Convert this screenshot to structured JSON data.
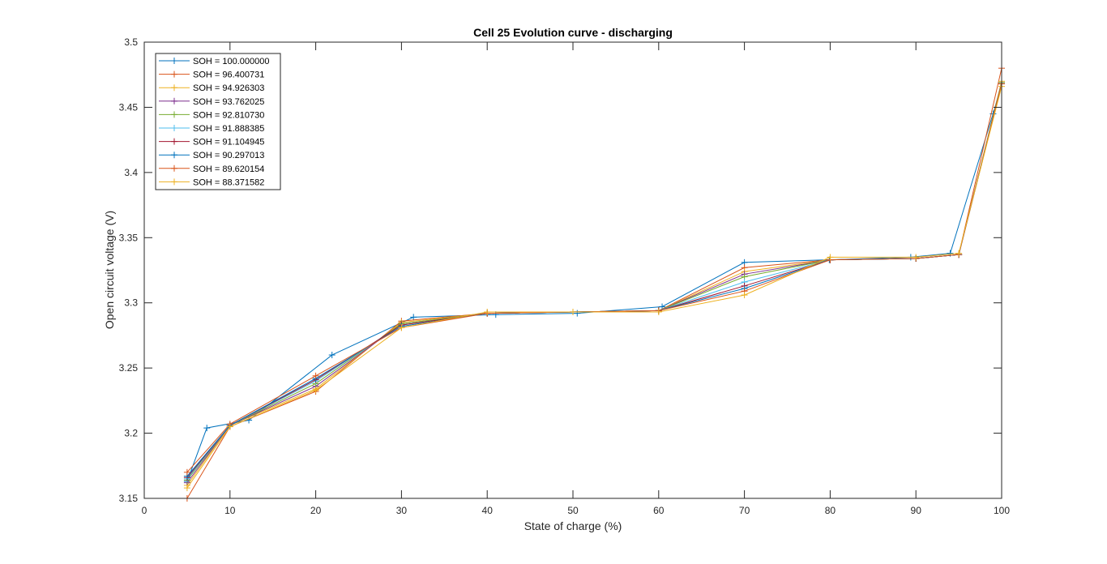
{
  "chart_data": {
    "type": "line",
    "title": "Cell 25 Evolution curve - discharging",
    "xlabel": "State of charge (%)",
    "ylabel": "Open circuit voltage (V)",
    "xlim": [
      0,
      100
    ],
    "ylim": [
      3.15,
      3.5
    ],
    "xticks": [
      0,
      10,
      20,
      30,
      40,
      50,
      60,
      70,
      80,
      90,
      100
    ],
    "xtick_labels": [
      "0",
      "10",
      "20",
      "30",
      "40",
      "50",
      "60",
      "70",
      "80",
      "90",
      "100"
    ],
    "yticks": [
      3.15,
      3.2,
      3.25,
      3.3,
      3.35,
      3.4,
      3.45,
      3.5
    ],
    "ytick_labels": [
      "3.15",
      "3.2",
      "3.25",
      "3.3",
      "3.35",
      "3.4",
      "3.45",
      "3.5"
    ],
    "grid": false,
    "legend_position": "top-left",
    "marker": "+",
    "series": [
      {
        "name": "SOH = 100.000000",
        "color": "#0072BD",
        "x": [
          5,
          7.3,
          12.2,
          21.9,
          31.4,
          41,
          50.5,
          60.4,
          70,
          79.9,
          89.4,
          94,
          99,
          100
        ],
        "y": [
          3.163,
          3.204,
          3.21,
          3.26,
          3.289,
          3.291,
          3.292,
          3.297,
          3.331,
          3.333,
          3.335,
          3.338,
          3.445,
          3.468
        ]
      },
      {
        "name": "SOH = 96.400731",
        "color": "#D95319",
        "x": [
          5,
          10,
          20,
          30,
          40,
          50,
          60,
          70,
          80,
          90,
          95,
          100
        ],
        "y": [
          3.15,
          3.205,
          3.232,
          3.286,
          3.292,
          3.293,
          3.294,
          3.327,
          3.333,
          3.334,
          3.337,
          3.48
        ]
      },
      {
        "name": "SOH = 94.926303",
        "color": "#EDB120",
        "x": [
          5,
          10,
          20,
          30,
          40,
          50,
          60,
          70,
          80,
          90,
          95,
          100
        ],
        "y": [
          3.16,
          3.206,
          3.234,
          3.285,
          3.292,
          3.293,
          3.294,
          3.324,
          3.333,
          3.334,
          3.337,
          3.47
        ]
      },
      {
        "name": "SOH = 93.762025",
        "color": "#7E2F8E",
        "x": [
          5,
          10,
          20,
          30,
          40,
          50,
          60,
          70,
          80,
          90,
          95,
          100
        ],
        "y": [
          3.162,
          3.206,
          3.236,
          3.284,
          3.292,
          3.293,
          3.294,
          3.322,
          3.333,
          3.334,
          3.337,
          3.469
        ]
      },
      {
        "name": "SOH = 92.810730",
        "color": "#77AC30",
        "x": [
          5,
          10,
          20,
          30,
          40,
          50,
          60,
          70,
          80,
          90,
          95,
          100
        ],
        "y": [
          3.164,
          3.206,
          3.238,
          3.284,
          3.292,
          3.293,
          3.294,
          3.32,
          3.333,
          3.334,
          3.337,
          3.469
        ]
      },
      {
        "name": "SOH = 91.888385",
        "color": "#4DBEEE",
        "x": [
          5,
          10,
          20,
          30,
          40,
          50,
          60,
          70,
          80,
          90,
          95,
          100
        ],
        "y": [
          3.165,
          3.206,
          3.24,
          3.283,
          3.292,
          3.293,
          3.294,
          3.316,
          3.333,
          3.334,
          3.337,
          3.468
        ]
      },
      {
        "name": "SOH = 91.104945",
        "color": "#A2142F",
        "x": [
          5,
          10,
          20,
          30,
          40,
          50,
          60,
          70,
          80,
          90,
          95,
          100
        ],
        "y": [
          3.166,
          3.206,
          3.241,
          3.283,
          3.292,
          3.293,
          3.294,
          3.313,
          3.333,
          3.334,
          3.337,
          3.468
        ]
      },
      {
        "name": "SOH = 90.297013",
        "color": "#0072BD",
        "x": [
          5,
          10,
          20,
          30,
          40,
          50,
          60,
          70,
          80,
          90,
          95,
          100
        ],
        "y": [
          3.167,
          3.206,
          3.242,
          3.282,
          3.292,
          3.293,
          3.294,
          3.311,
          3.333,
          3.334,
          3.337,
          3.468
        ]
      },
      {
        "name": "SOH = 89.620154",
        "color": "#D95319",
        "x": [
          5,
          10,
          20,
          30,
          40,
          50,
          60,
          70,
          80,
          90,
          95,
          100
        ],
        "y": [
          3.17,
          3.207,
          3.244,
          3.281,
          3.292,
          3.293,
          3.294,
          3.309,
          3.333,
          3.334,
          3.337,
          3.468
        ]
      },
      {
        "name": "SOH = 88.371582",
        "color": "#EDB120",
        "x": [
          5,
          10,
          20,
          30,
          40,
          50,
          60,
          70,
          80,
          90,
          95,
          100
        ],
        "y": [
          3.158,
          3.205,
          3.233,
          3.281,
          3.293,
          3.293,
          3.293,
          3.306,
          3.335,
          3.335,
          3.338,
          3.466
        ]
      }
    ]
  }
}
